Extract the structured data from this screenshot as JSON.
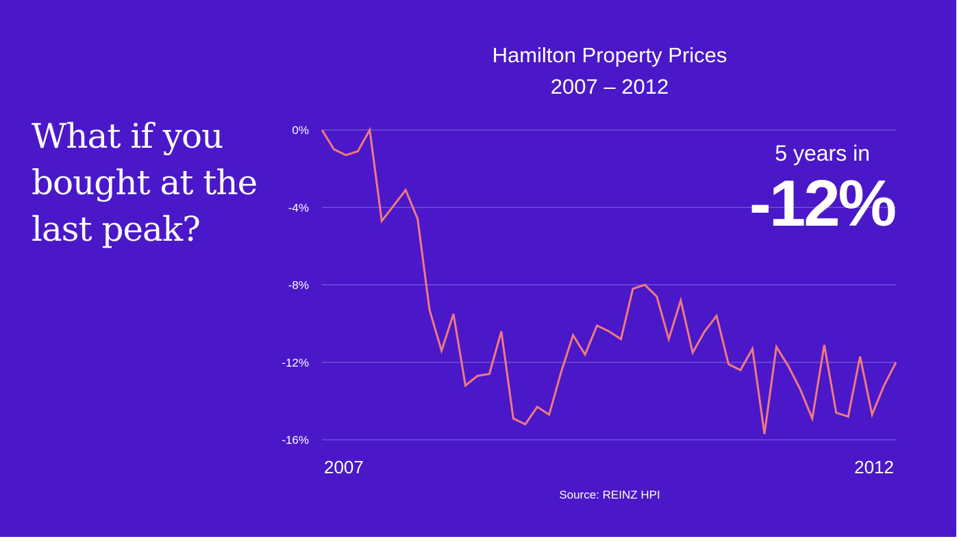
{
  "headline": "What if you bought at the last peak?",
  "callout": {
    "label": "5 years in",
    "value": "-12%"
  },
  "source": "Source: REINZ HPI",
  "colors": {
    "background": "#4a18c8",
    "line": "#f07a7e",
    "grid": "#8a66e0",
    "text": "#ffffff"
  },
  "chart_data": {
    "type": "line",
    "title": "Hamilton Property Prices",
    "subtitle": "2007 – 2012",
    "xlabel": "",
    "ylabel": "",
    "x_ticks": [
      "2007",
      "2012"
    ],
    "y_ticks": [
      "0%",
      "-4%",
      "-8%",
      "-12%",
      "-16%"
    ],
    "y_tick_values": [
      0,
      -4,
      -8,
      -12,
      -16
    ],
    "ylim": [
      -16,
      0
    ],
    "grid": true,
    "series": [
      {
        "values": [
          0,
          -1.0,
          -1.3,
          -1.1,
          0,
          -4.7,
          -3.9,
          -3.1,
          -4.6,
          -9.3,
          -11.4,
          -9.5,
          -13.2,
          -12.7,
          -12.6,
          -10.4,
          -14.9,
          -15.2,
          -14.3,
          -14.7,
          -12.5,
          -10.6,
          -11.6,
          -10.1,
          -10.4,
          -10.8,
          -8.2,
          -8.0,
          -8.6,
          -10.8,
          -8.8,
          -11.5,
          -10.4,
          -9.6,
          -12.1,
          -12.4,
          -11.3,
          -15.7,
          -11.2,
          -12.2,
          -13.4,
          -14.9,
          -11.1,
          -14.6,
          -14.8,
          -11.7,
          -14.7,
          -13.2,
          -12.0
        ]
      }
    ]
  }
}
